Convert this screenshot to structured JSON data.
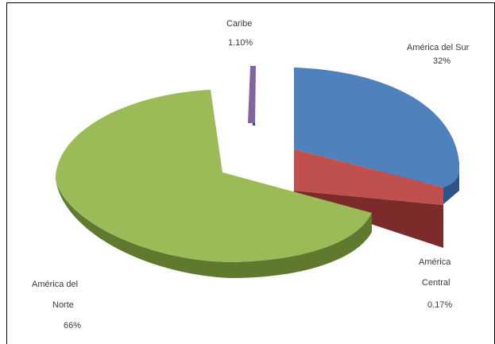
{
  "chart_data": {
    "type": "pie",
    "style": "3d-exploded",
    "title": "",
    "legend": "none",
    "slices": [
      {
        "label": "América del Sur",
        "value_label": "32%",
        "value": 32,
        "color": "#4f81bd",
        "side_color": "#2e5486"
      },
      {
        "label": "América Central",
        "value_label": "0.17%",
        "value": 0.17,
        "color": "#c0504d",
        "side_color": "#7d2b2a"
      },
      {
        "label": "América del Norte",
        "value_label": "66%",
        "value": 66,
        "color": "#9bbb59",
        "side_color": "#5f7a2e"
      },
      {
        "label": "Caribe",
        "value_label": "1.10%",
        "value": 1.1,
        "color": "#8064a2",
        "side_color": "#4d3a66"
      }
    ]
  }
}
